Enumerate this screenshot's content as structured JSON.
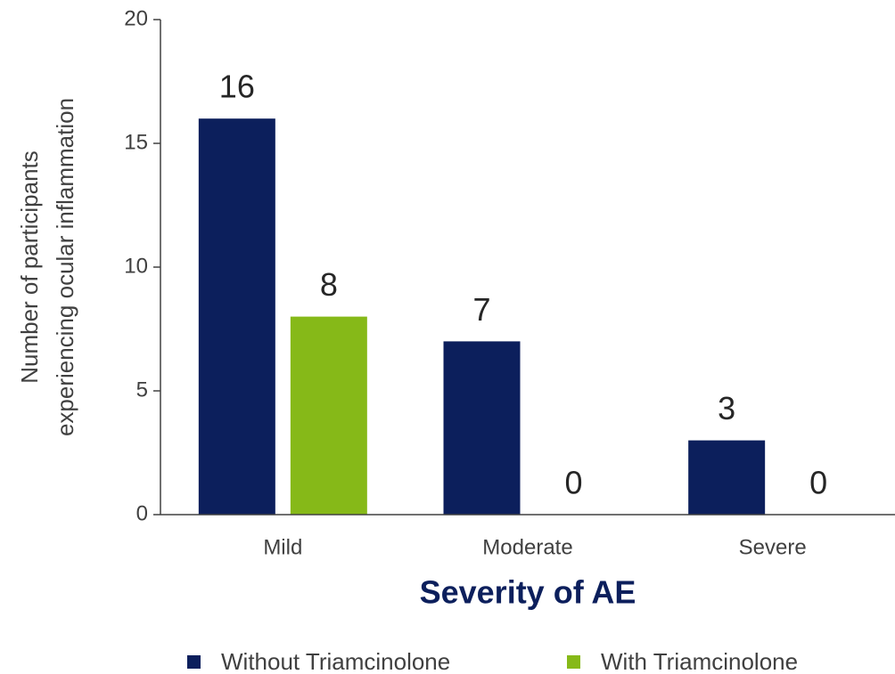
{
  "chart_data": {
    "type": "bar",
    "ylabel": [
      "Number of participants",
      "experiencing ocular inflammation"
    ],
    "xlabel": "Severity of AE",
    "categories": [
      "Mild",
      "Moderate",
      "Severe"
    ],
    "series": [
      {
        "name": "Without Triamcinolone",
        "color": "#0c1f5c",
        "values": [
          16,
          7,
          3
        ]
      },
      {
        "name": "With Triamcinolone",
        "color": "#86b918",
        "values": [
          8,
          0,
          0
        ]
      }
    ],
    "ylim": [
      0,
      20
    ],
    "yticks": [
      0,
      5,
      10,
      15,
      20
    ],
    "grid": false,
    "legend": "bottom"
  }
}
